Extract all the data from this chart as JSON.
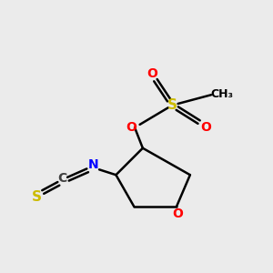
{
  "bg_color": "#ebebeb",
  "bond_color": "#000000",
  "O_color": "#ff0000",
  "S_color": "#ccbb00",
  "N_color": "#0000ff",
  "C_color": "#404040",
  "figsize": [
    3.0,
    3.0
  ],
  "dpi": 100,
  "xlim": [
    0,
    10
  ],
  "ylim": [
    0,
    10
  ]
}
